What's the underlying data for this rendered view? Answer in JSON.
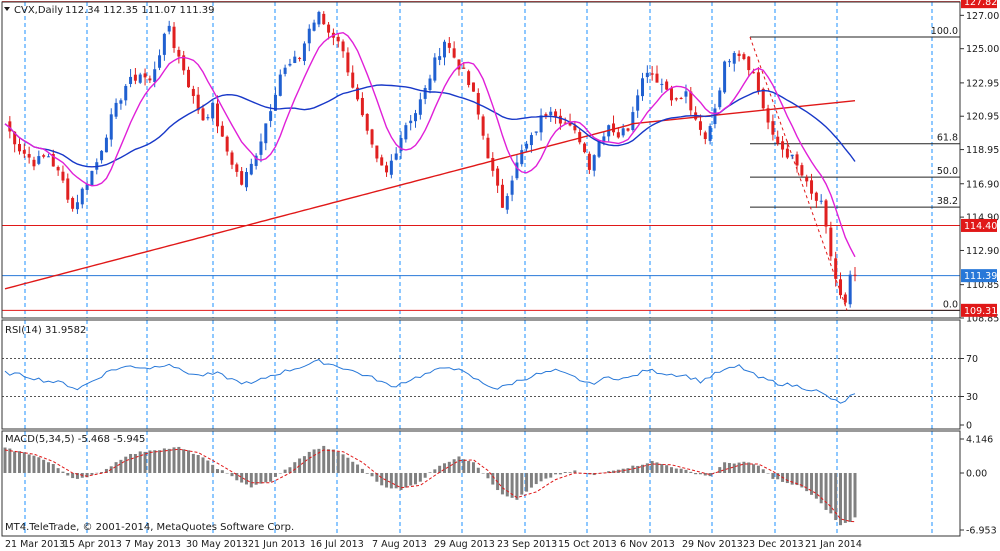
{
  "header": {
    "symbol": "CVX,Daily",
    "ohlc": "112.34 112.35 111.07 111.39"
  },
  "rsi_label": "RSI(14) 31.9582",
  "macd_label": "MACD(5,34,5) -5.468 -5.945",
  "copyright": "MT4.TeleTrade, © 2001-2014, MetaQuotes Software Corp.",
  "x_labels": [
    "21 Mar 2013",
    "15 Apr 2013",
    "7 May 2013",
    "30 May 2013",
    "21 Jun 2013",
    "16 Jul 2013",
    "7 Aug 2013",
    "29 Aug 2013",
    "23 Sep 2013",
    "15 Oct 2013",
    "6 Nov 2013",
    "29 Nov 2013",
    "23 Dec 2013",
    "21 Jan 2014"
  ],
  "colors": {
    "up": "#2060d0",
    "down": "#e02020",
    "ma_fast": "#e020d8",
    "ma_mid": "#1838c8",
    "ma_slow": "#e01818",
    "level": "#e01818",
    "current": "#2878d8",
    "rsi": "#2878d8",
    "macd_bar": "#808080",
    "macd_signal": "#e01818",
    "grid": "#1e90ff"
  },
  "chart_data": [
    {
      "type": "candlestick",
      "title": "CVX,Daily",
      "ylim": [
        108.85,
        127.8
      ],
      "y_ticks": [
        127.0,
        125.0,
        122.95,
        120.95,
        118.95,
        116.9,
        114.9,
        112.9,
        110.85,
        108.85
      ],
      "y_tick_labels": [
        "127.00",
        "125.00",
        "122.95",
        "120.95",
        "118.95",
        "116.90",
        "114.90",
        "112.90",
        "110.85",
        "108.85"
      ],
      "horizontal_levels": [
        {
          "value": 127.82,
          "label": "127.82"
        },
        {
          "value": 114.4,
          "label": "114.40"
        },
        {
          "value": 109.31,
          "label": "109.31"
        }
      ],
      "current_price": {
        "value": 111.39,
        "label": "111.39"
      },
      "fibonacci": {
        "high": 125.7,
        "low": 109.31,
        "levels": [
          {
            "label": "100.0",
            "value": 125.7
          },
          {
            "label": "61.8",
            "value": 119.3
          },
          {
            "label": "50.0",
            "value": 117.3
          },
          {
            "label": "38.2",
            "value": 115.5
          },
          {
            "label": "0.0",
            "value": 109.31
          }
        ]
      },
      "close_path": [
        [
          0,
          120.5
        ],
        [
          3,
          119.0
        ],
        [
          6,
          118.2
        ],
        [
          9,
          118.6
        ],
        [
          12,
          117.0
        ],
        [
          14,
          115.4
        ],
        [
          16,
          116.5
        ],
        [
          19,
          118.2
        ],
        [
          22,
          120.8
        ],
        [
          25,
          122.8
        ],
        [
          28,
          123.5
        ],
        [
          30,
          123.0
        ],
        [
          32,
          124.8
        ],
        [
          34,
          126.4
        ],
        [
          35,
          125.2
        ],
        [
          37,
          123.8
        ],
        [
          39,
          122.0
        ],
        [
          41,
          120.8
        ],
        [
          43,
          121.5
        ],
        [
          45,
          119.5
        ],
        [
          47,
          118.2
        ],
        [
          49,
          116.9
        ],
        [
          51,
          118.0
        ],
        [
          53,
          119.6
        ],
        [
          55,
          121.5
        ],
        [
          57,
          123.5
        ],
        [
          59,
          124.0
        ],
        [
          61,
          124.5
        ],
        [
          63,
          126.2
        ],
        [
          65,
          127.0
        ],
        [
          67,
          126.0
        ],
        [
          69,
          125.6
        ],
        [
          71,
          123.8
        ],
        [
          73,
          121.8
        ],
        [
          75,
          119.8
        ],
        [
          77,
          118.2
        ],
        [
          79,
          117.5
        ],
        [
          81,
          119.0
        ],
        [
          83,
          120.5
        ],
        [
          85,
          121.2
        ],
        [
          87,
          122.5
        ],
        [
          89,
          124.2
        ],
        [
          91,
          125.5
        ],
        [
          93,
          124.5
        ],
        [
          95,
          123.5
        ],
        [
          97,
          122.2
        ],
        [
          99,
          119.8
        ],
        [
          101,
          117.5
        ],
        [
          103,
          115.6
        ],
        [
          105,
          117.3
        ],
        [
          107,
          118.8
        ],
        [
          109,
          119.6
        ],
        [
          111,
          120.8
        ],
        [
          113,
          121.5
        ],
        [
          115,
          120.8
        ],
        [
          117,
          120.2
        ],
        [
          119,
          119.6
        ],
        [
          121,
          118.0
        ],
        [
          123,
          119.5
        ],
        [
          125,
          120.5
        ],
        [
          127,
          119.8
        ],
        [
          129,
          120.3
        ],
        [
          131,
          122.5
        ],
        [
          133,
          123.8
        ],
        [
          135,
          123.2
        ],
        [
          137,
          122.6
        ],
        [
          139,
          121.8
        ],
        [
          141,
          122.3
        ],
        [
          143,
          120.5
        ],
        [
          145,
          119.5
        ],
        [
          147,
          121.5
        ],
        [
          149,
          124.0
        ],
        [
          151,
          125.0
        ],
        [
          153,
          124.5
        ],
        [
          155,
          123.5
        ],
        [
          157,
          121.5
        ],
        [
          159,
          119.6
        ],
        [
          161,
          119.0
        ],
        [
          163,
          118.4
        ],
        [
          165,
          117.4
        ],
        [
          167,
          116.2
        ],
        [
          169,
          115.6
        ],
        [
          171,
          112.6
        ],
        [
          172,
          111.2
        ],
        [
          173,
          110.1
        ],
        [
          174,
          109.6
        ],
        [
          175,
          111.2
        ],
        [
          176,
          111.39
        ]
      ],
      "series": [
        {
          "name": "",
          "values": []
        }
      ]
    },
    {
      "type": "line",
      "title": "RSI(14) 31.9582",
      "ylim": [
        0,
        100
      ],
      "y_ticks": [
        70,
        30,
        0
      ],
      "y_tick_labels": [
        "70",
        "30",
        "0"
      ],
      "levels": [
        70,
        30
      ],
      "path": [
        [
          0,
          55
        ],
        [
          4,
          52
        ],
        [
          8,
          47
        ],
        [
          12,
          44
        ],
        [
          15,
          38
        ],
        [
          18,
          46
        ],
        [
          22,
          58
        ],
        [
          26,
          62
        ],
        [
          30,
          60
        ],
        [
          34,
          65
        ],
        [
          36,
          58
        ],
        [
          40,
          52
        ],
        [
          44,
          54
        ],
        [
          48,
          46
        ],
        [
          51,
          43
        ],
        [
          55,
          52
        ],
        [
          59,
          58
        ],
        [
          63,
          64
        ],
        [
          65,
          67
        ],
        [
          69,
          62
        ],
        [
          73,
          55
        ],
        [
          77,
          48
        ],
        [
          80,
          40
        ],
        [
          84,
          48
        ],
        [
          88,
          55
        ],
        [
          92,
          62
        ],
        [
          95,
          55
        ],
        [
          99,
          44
        ],
        [
          102,
          38
        ],
        [
          106,
          46
        ],
        [
          110,
          53
        ],
        [
          114,
          57
        ],
        [
          118,
          50
        ],
        [
          121,
          43
        ],
        [
          125,
          50
        ],
        [
          129,
          49
        ],
        [
          133,
          58
        ],
        [
          137,
          54
        ],
        [
          141,
          52
        ],
        [
          144,
          46
        ],
        [
          148,
          56
        ],
        [
          152,
          62
        ],
        [
          156,
          50
        ],
        [
          160,
          44
        ],
        [
          164,
          41
        ],
        [
          168,
          36
        ],
        [
          171,
          28
        ],
        [
          173,
          22
        ],
        [
          175,
          30
        ],
        [
          176,
          32
        ]
      ]
    },
    {
      "type": "bar",
      "title": "MACD(5,34,5) -5.468 -5.945",
      "ylim": [
        -6.953,
        4.146
      ],
      "y_ticks": [
        4.146,
        0.0,
        -6.953
      ],
      "y_tick_labels": [
        "4.146",
        "0.00",
        "-6.953"
      ],
      "macd_path": [
        [
          0,
          3.0
        ],
        [
          6,
          2.2
        ],
        [
          10,
          1.0
        ],
        [
          14,
          -0.6
        ],
        [
          17,
          -0.6
        ],
        [
          21,
          0.5
        ],
        [
          25,
          2.1
        ],
        [
          30,
          2.8
        ],
        [
          36,
          3.1
        ],
        [
          40,
          2.2
        ],
        [
          44,
          0.6
        ],
        [
          48,
          -0.8
        ],
        [
          51,
          -1.7
        ],
        [
          55,
          -1.0
        ],
        [
          59,
          0.8
        ],
        [
          63,
          2.6
        ],
        [
          66,
          3.2
        ],
        [
          70,
          2.3
        ],
        [
          74,
          0.5
        ],
        [
          78,
          -1.5
        ],
        [
          82,
          -2.1
        ],
        [
          86,
          -1.0
        ],
        [
          90,
          1.0
        ],
        [
          94,
          1.9
        ],
        [
          97,
          1.4
        ],
        [
          100,
          -0.6
        ],
        [
          103,
          -2.7
        ],
        [
          106,
          -3.2
        ],
        [
          110,
          -1.4
        ],
        [
          114,
          -0.2
        ],
        [
          118,
          0.2
        ],
        [
          122,
          -0.3
        ],
        [
          126,
          0.4
        ],
        [
          130,
          0.8
        ],
        [
          134,
          1.4
        ],
        [
          138,
          0.8
        ],
        [
          142,
          0.1
        ],
        [
          146,
          -0.4
        ],
        [
          149,
          1.2
        ],
        [
          153,
          1.3
        ],
        [
          156,
          0.9
        ],
        [
          159,
          -0.6
        ],
        [
          162,
          -1.3
        ],
        [
          165,
          -1.7
        ],
        [
          168,
          -3.2
        ],
        [
          171,
          -5.0
        ],
        [
          173,
          -6.4
        ],
        [
          175,
          -5.9
        ],
        [
          176,
          -5.468
        ]
      ],
      "signal_path": [
        [
          0,
          2.8
        ],
        [
          6,
          2.3
        ],
        [
          10,
          1.4
        ],
        [
          14,
          0.0
        ],
        [
          17,
          -0.4
        ],
        [
          21,
          0.1
        ],
        [
          25,
          1.5
        ],
        [
          30,
          2.5
        ],
        [
          36,
          2.9
        ],
        [
          40,
          2.5
        ],
        [
          44,
          1.2
        ],
        [
          48,
          -0.2
        ],
        [
          51,
          -1.2
        ],
        [
          55,
          -1.2
        ],
        [
          59,
          0.0
        ],
        [
          63,
          1.8
        ],
        [
          66,
          2.8
        ],
        [
          70,
          2.6
        ],
        [
          74,
          1.3
        ],
        [
          78,
          -0.6
        ],
        [
          82,
          -1.8
        ],
        [
          86,
          -1.5
        ],
        [
          90,
          0.1
        ],
        [
          94,
          1.5
        ],
        [
          97,
          1.6
        ],
        [
          100,
          0.3
        ],
        [
          103,
          -1.8
        ],
        [
          106,
          -3.0
        ],
        [
          110,
          -2.3
        ],
        [
          114,
          -0.8
        ],
        [
          118,
          0.0
        ],
        [
          122,
          -0.1
        ],
        [
          126,
          0.1
        ],
        [
          130,
          0.5
        ],
        [
          134,
          1.1
        ],
        [
          138,
          1.0
        ],
        [
          142,
          0.4
        ],
        [
          146,
          -0.2
        ],
        [
          149,
          0.4
        ],
        [
          153,
          1.1
        ],
        [
          156,
          1.1
        ],
        [
          159,
          0.2
        ],
        [
          162,
          -0.9
        ],
        [
          165,
          -1.5
        ],
        [
          168,
          -2.5
        ],
        [
          171,
          -4.1
        ],
        [
          173,
          -5.6
        ],
        [
          175,
          -5.9
        ],
        [
          176,
          -5.945
        ]
      ]
    }
  ]
}
